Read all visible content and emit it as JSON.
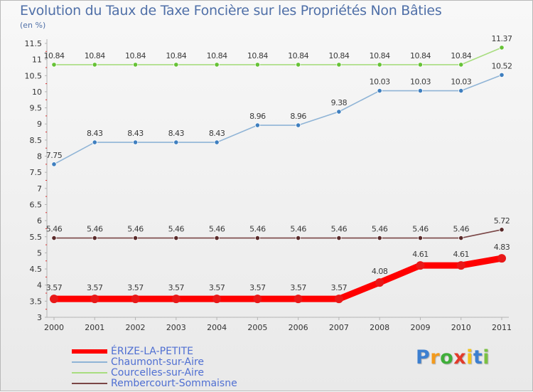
{
  "page": {
    "title": "Evolution du Taux de Taxe Foncière sur les Propriétés Non Bâties",
    "unit": "(en %)"
  },
  "colors": {
    "axis": "#b3b3b3",
    "tick_label": "#333333",
    "value_label": "#3a3a3a",
    "grid_ticks": "#e03030"
  },
  "chart_data": {
    "type": "line",
    "title": "Evolution du Taux de Taxe Foncière sur les Propriétés Non Bâties",
    "ylabel": "(en %)",
    "xlabel": "",
    "ylim": [
      3,
      11.5
    ],
    "yticks": [
      3,
      3.5,
      4,
      4.5,
      5,
      5.5,
      6,
      6.5,
      7,
      7.5,
      8,
      8.5,
      9,
      9.5,
      10,
      10.5,
      11,
      11.5
    ],
    "categories": [
      "2000",
      "2001",
      "2002",
      "2003",
      "2004",
      "2005",
      "2006",
      "2007",
      "2008",
      "2009",
      "2010",
      "2011"
    ],
    "series": [
      {
        "name": "ÉRIZE-LA-PETITE",
        "color": "#ff0000",
        "marker": "#e81818",
        "emphasis": true,
        "values": [
          3.57,
          3.57,
          3.57,
          3.57,
          3.57,
          3.57,
          3.57,
          3.57,
          4.08,
          4.61,
          4.61,
          4.83
        ],
        "labels": [
          "3.57",
          "3.57",
          "3.57",
          "3.57",
          "3.57",
          "3.57",
          "3.57",
          "3.57",
          "4.08",
          "4.61",
          "4.61",
          "4.83"
        ]
      },
      {
        "name": "Chaumont-sur-Aire",
        "color": "#8fb4d6",
        "marker": "#3f7fbf",
        "values": [
          7.75,
          8.43,
          8.43,
          8.43,
          8.43,
          8.96,
          8.96,
          9.38,
          10.03,
          10.03,
          10.03,
          10.52
        ],
        "labels": [
          "7.75",
          "8.43",
          "8.43",
          "8.43",
          "8.43",
          "8.96",
          "8.96",
          "9.38",
          "10.03",
          "10.03",
          "10.03",
          "10.52"
        ]
      },
      {
        "name": "Courcelles-sur-Aire",
        "color": "#a8dd80",
        "marker": "#66c236",
        "values": [
          10.84,
          10.84,
          10.84,
          10.84,
          10.84,
          10.84,
          10.84,
          10.84,
          10.84,
          10.84,
          10.84,
          11.37
        ],
        "labels": [
          "10.84",
          "10.84",
          "10.84",
          "10.84",
          "10.84",
          "10.84",
          "10.84",
          "10.84",
          "10.84",
          "10.84",
          "10.84",
          "11.37"
        ]
      },
      {
        "name": "Rembercourt-Sommaisne",
        "color": "#7a4646",
        "marker": "#5a2a2a",
        "values": [
          5.46,
          5.46,
          5.46,
          5.46,
          5.46,
          5.46,
          5.46,
          5.46,
          5.46,
          5.46,
          5.46,
          5.72
        ],
        "labels": [
          "5.46",
          "5.46",
          "5.46",
          "5.46",
          "5.46",
          "5.46",
          "5.46",
          "5.46",
          "5.46",
          "5.46",
          "5.46",
          "5.72"
        ]
      }
    ],
    "legend": [
      "ÉRIZE-LA-PETITE",
      "Chaumont-sur-Aire",
      "Courcelles-sur-Aire",
      "Rembercourt-Sommaisne"
    ],
    "legend_position": "bottom-left"
  },
  "logo": {
    "letters": [
      "P",
      "r",
      "o",
      "x",
      "i",
      "t",
      "i"
    ],
    "colors": [
      "#3c7fd0",
      "#f39a1c",
      "#3fae3a",
      "#e23a2a",
      "#f2c21a",
      "#3c7fd0",
      "#7ac142"
    ]
  }
}
